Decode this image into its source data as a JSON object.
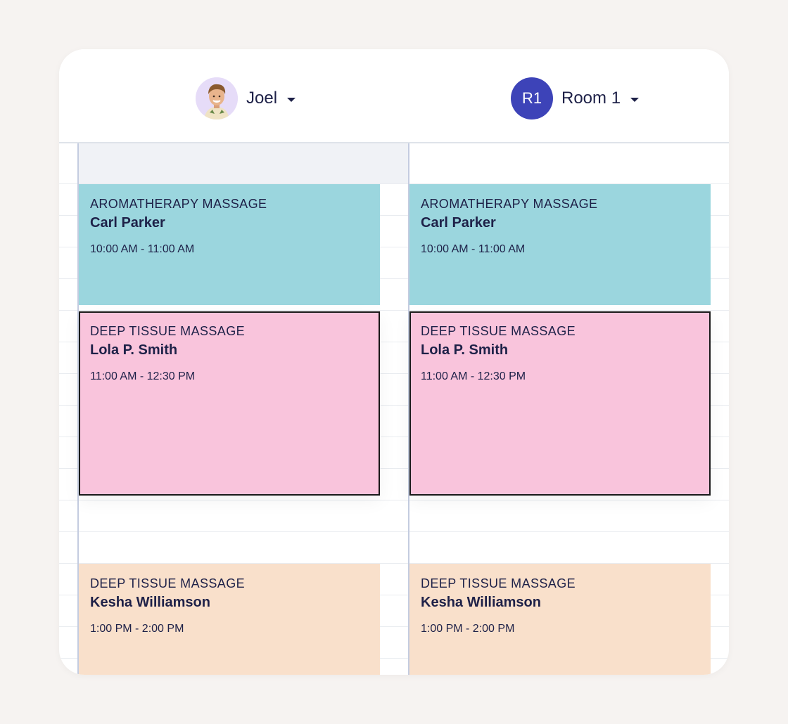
{
  "resources": [
    {
      "name": "Joel",
      "avatar": "person-photo"
    },
    {
      "name": "Room 1",
      "initials": "R1",
      "avatar_color": "#3d43b8"
    }
  ],
  "columns": [
    {
      "appointments": [
        {
          "service": "AROMATHERAPY MASSAGE",
          "client": "Carl Parker",
          "time": "10:00 AM - 11:00 AM",
          "color": "#9bd6de",
          "selected": false
        },
        {
          "service": "DEEP TISSUE MASSAGE",
          "client": "Lola P. Smith",
          "time": "11:00 AM - 12:30 PM",
          "color": "#f9c4dc",
          "selected": true
        },
        {
          "service": "DEEP TISSUE MASSAGE",
          "client": "Kesha Williamson",
          "time": "1:00 PM - 2:00 PM",
          "color": "#f9e0cb",
          "selected": false
        }
      ]
    },
    {
      "appointments": [
        {
          "service": "AROMATHERAPY MASSAGE",
          "client": "Carl Parker",
          "time": "10:00 AM - 11:00 AM",
          "color": "#9bd6de",
          "selected": false
        },
        {
          "service": "DEEP TISSUE MASSAGE",
          "client": "Lola P. Smith",
          "time": "11:00 AM - 12:30 PM",
          "color": "#f9c4dc",
          "selected": true
        },
        {
          "service": "DEEP TISSUE MASSAGE",
          "client": "Kesha Williamson",
          "time": "1:00 PM - 2:00 PM",
          "color": "#f9e0cb",
          "selected": false
        }
      ]
    }
  ],
  "colors": {
    "accent": "#3d43b8",
    "text": "#1e2148",
    "background": "#f6f3f1"
  }
}
